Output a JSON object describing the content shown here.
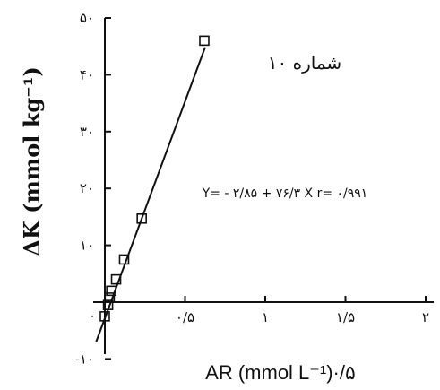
{
  "chart_data": {
    "type": "scatter",
    "title": "",
    "panel_label": "شماره ۱۰",
    "xlabel": "AR (mmol L⁻¹)·/۵",
    "ylabel": "ΔK (mmol kg⁻¹)",
    "xlim": [
      -0.02,
      2
    ],
    "ylim": [
      -10,
      50
    ],
    "x_ticks": [
      {
        "value": 0.5,
        "label": "۰/۵"
      },
      {
        "value": 1.0,
        "label": "۱"
      },
      {
        "value": 1.5,
        "label": "۱/۵"
      },
      {
        "value": 2.0,
        "label": "۲"
      }
    ],
    "y_ticks": [
      {
        "value": -10,
        "label": "-۱۰"
      },
      {
        "value": 10,
        "label": "۱۰"
      },
      {
        "value": 20,
        "label": "۲۰"
      },
      {
        "value": 30,
        "label": "۳۰"
      },
      {
        "value": 40,
        "label": "۴۰"
      },
      {
        "value": 50,
        "label": "۵۰"
      }
    ],
    "origin_label": "۰",
    "equation": "Y= - ۲/۸۵ + ۷۶/۳ X   r= ۰/۹۹۱",
    "fit": {
      "intercept": -2.85,
      "slope": 76.3,
      "r": 0.991
    },
    "points": [
      {
        "x": 0.0,
        "y": -2.5
      },
      {
        "x": 0.02,
        "y": -0.5
      },
      {
        "x": 0.03,
        "y": 0.8
      },
      {
        "x": 0.04,
        "y": 2.0
      },
      {
        "x": 0.07,
        "y": 4.0
      },
      {
        "x": 0.12,
        "y": 7.5
      },
      {
        "x": 0.23,
        "y": 14.7
      },
      {
        "x": 0.62,
        "y": 46.0
      }
    ],
    "grid": false,
    "legend": "none"
  }
}
